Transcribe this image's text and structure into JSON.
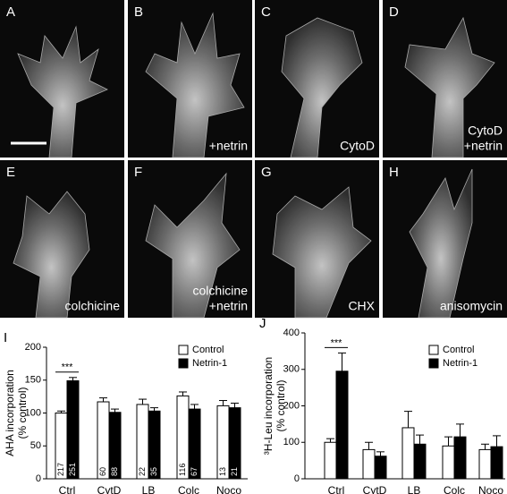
{
  "panels": [
    {
      "letter": "A",
      "caption": []
    },
    {
      "letter": "B",
      "caption": [
        "+netrin"
      ]
    },
    {
      "letter": "C",
      "caption": [
        "CytoD"
      ]
    },
    {
      "letter": "D",
      "caption": [
        "CytoD",
        "+netrin"
      ]
    },
    {
      "letter": "E",
      "caption": [
        "colchicine"
      ]
    },
    {
      "letter": "F",
      "caption": [
        "colchicine",
        "+netrin"
      ]
    },
    {
      "letter": "G",
      "caption": [
        "CHX"
      ]
    },
    {
      "letter": "H",
      "caption": [
        "anisomycin"
      ]
    }
  ],
  "chart_data": [
    {
      "type": "bar",
      "panel": "I",
      "ylabel": [
        "AHA incorporation",
        "(% control)"
      ],
      "categories": [
        "Ctrl",
        "CytD",
        "LB",
        "Colc",
        "Noco"
      ],
      "ylim": [
        0,
        200
      ],
      "yticks": [
        0,
        50,
        100,
        150,
        200
      ],
      "annotation": "***",
      "series": [
        {
          "name": "Control",
          "color": "#ffffff",
          "values": [
            100,
            117,
            113,
            126,
            111
          ],
          "errors": [
            3,
            6,
            8,
            6,
            8
          ],
          "n": [
            "217",
            "60",
            "22",
            "116",
            "13"
          ]
        },
        {
          "name": "Netrin-1",
          "color": "#000000",
          "values": [
            149,
            101,
            103,
            106,
            108
          ],
          "errors": [
            5,
            5,
            5,
            7,
            7
          ],
          "n": [
            "251",
            "88",
            "35",
            "67",
            "21"
          ]
        }
      ]
    },
    {
      "type": "bar",
      "panel": "J",
      "ylabel": [
        "³H-Leu incorporation",
        "(% control)"
      ],
      "categories": [
        "Ctrl",
        "CytD",
        "LB",
        "Colc",
        "Noco"
      ],
      "ylim": [
        0,
        400
      ],
      "yticks": [
        0,
        100,
        200,
        300,
        400
      ],
      "annotation": "***",
      "series": [
        {
          "name": "Control",
          "color": "#ffffff",
          "values": [
            100,
            80,
            140,
            90,
            80
          ],
          "errors": [
            10,
            20,
            45,
            25,
            15
          ]
        },
        {
          "name": "Netrin-1",
          "color": "#000000",
          "values": [
            295,
            62,
            95,
            115,
            88
          ],
          "errors": [
            50,
            12,
            25,
            35,
            30
          ]
        }
      ]
    }
  ]
}
